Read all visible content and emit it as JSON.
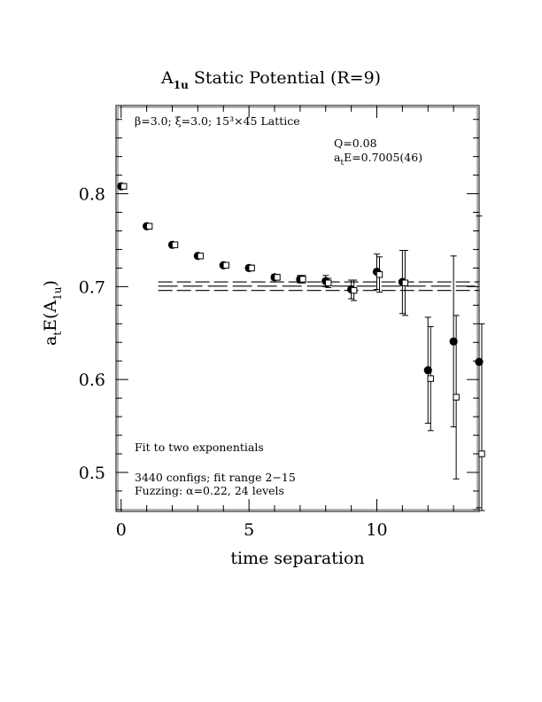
{
  "chart_data": {
    "type": "scatter",
    "title": "A_1u Static Potential (R=9)",
    "title_parts": {
      "main": "A",
      "sub": "1u",
      "rest": " Static Potential (R=9)"
    },
    "xlabel": "time separation",
    "ylabel_parts": {
      "a": "a",
      "t": "t",
      "E": "E(A",
      "sub": "1u",
      "close": ")"
    },
    "xlim": [
      -0.2,
      14.0
    ],
    "ylim": [
      0.458,
      0.895
    ],
    "x_ticks": [
      0,
      5,
      10
    ],
    "y_ticks": [
      0.5,
      0.6,
      0.7,
      0.8
    ],
    "x_tick_labels": [
      "0",
      "5",
      "10"
    ],
    "y_tick_labels": [
      "0.5",
      "0.6",
      "0.7",
      "0.8"
    ],
    "x_minor_step": 1,
    "y_minor_step": 0.02,
    "annotations": {
      "lattice": "β=3.0; ξ=3.0; 15³×45 Lattice",
      "q": "Q=0.08",
      "energy": "a_tE=0.7005(46)",
      "energy_prefix": "a",
      "energy_sub": "t",
      "energy_rest": "E=0.7005(46)",
      "fit": "Fit to two exponentials",
      "configs": "3440 configs; fit range 2−15",
      "fuzzing": "Fuzzing: α=0.22, 24 levels"
    },
    "fit": {
      "x_range": [
        2,
        15
      ],
      "central": 0.7005,
      "upper": 0.7051,
      "lower": 0.6959
    },
    "series": [
      {
        "marker": "filled-circle",
        "points": [
          {
            "x": 0,
            "y": 0.808,
            "err": 0.001
          },
          {
            "x": 1,
            "y": 0.765,
            "err": 0.001
          },
          {
            "x": 2,
            "y": 0.745,
            "err": 0.002
          },
          {
            "x": 3,
            "y": 0.733,
            "err": 0.002
          },
          {
            "x": 4,
            "y": 0.723,
            "err": 0.002
          },
          {
            "x": 5,
            "y": 0.72,
            "err": 0.003
          },
          {
            "x": 6,
            "y": 0.71,
            "err": 0.003
          },
          {
            "x": 7,
            "y": 0.708,
            "err": 0.004
          },
          {
            "x": 8,
            "y": 0.706,
            "err": 0.006
          },
          {
            "x": 9,
            "y": 0.697,
            "err": 0.01
          },
          {
            "x": 10,
            "y": 0.716,
            "err": 0.019
          },
          {
            "x": 11,
            "y": 0.705,
            "err": 0.034
          },
          {
            "x": 12,
            "y": 0.61,
            "err": 0.057
          },
          {
            "x": 13,
            "y": 0.641,
            "err": 0.092
          },
          {
            "x": 14,
            "y": 0.619,
            "err": 0.157
          }
        ]
      },
      {
        "marker": "open-square",
        "points": [
          {
            "x": 0,
            "y": 0.808,
            "err": 0.001
          },
          {
            "x": 1,
            "y": 0.765,
            "err": 0.001
          },
          {
            "x": 2,
            "y": 0.745,
            "err": 0.002
          },
          {
            "x": 3,
            "y": 0.733,
            "err": 0.002
          },
          {
            "x": 4,
            "y": 0.723,
            "err": 0.002
          },
          {
            "x": 5,
            "y": 0.72,
            "err": 0.003
          },
          {
            "x": 6,
            "y": 0.71,
            "err": 0.003
          },
          {
            "x": 7,
            "y": 0.708,
            "err": 0.004
          },
          {
            "x": 8,
            "y": 0.704,
            "err": 0.005
          },
          {
            "x": 9,
            "y": 0.696,
            "err": 0.011
          },
          {
            "x": 10,
            "y": 0.713,
            "err": 0.019
          },
          {
            "x": 11,
            "y": 0.704,
            "err": 0.035
          },
          {
            "x": 12,
            "y": 0.601,
            "err": 0.056
          },
          {
            "x": 13,
            "y": 0.581,
            "err": 0.088
          },
          {
            "x": 14,
            "y": 0.52,
            "err": 0.14
          }
        ]
      }
    ]
  }
}
